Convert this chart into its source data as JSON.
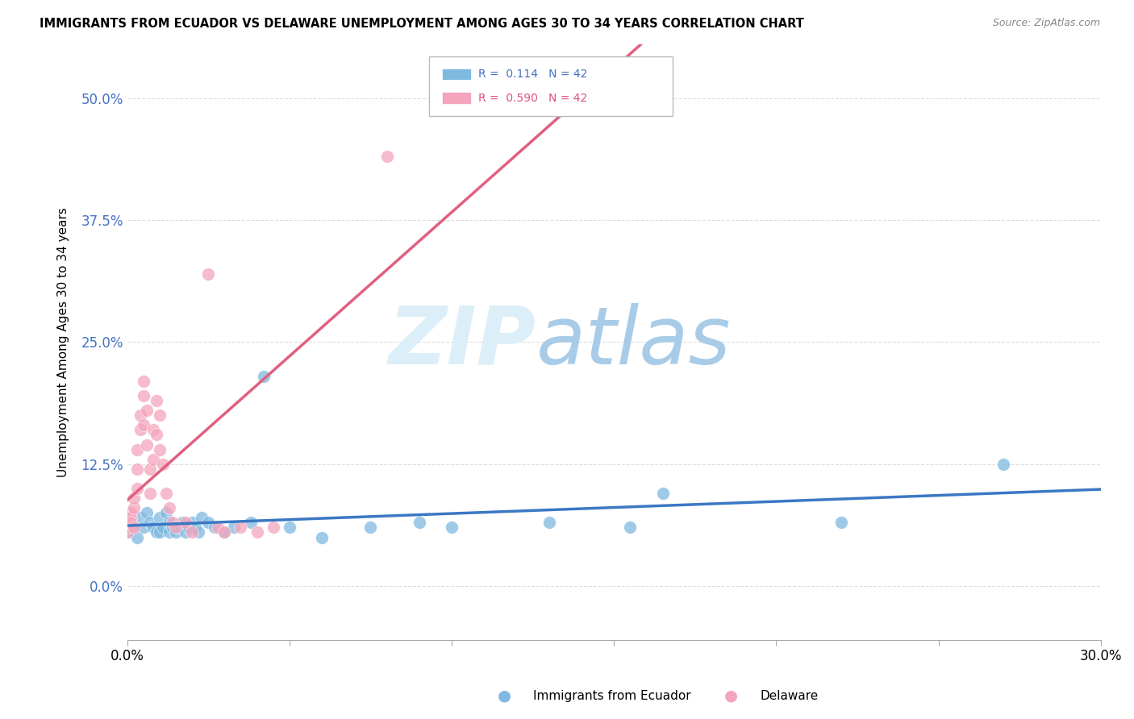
{
  "title": "IMMIGRANTS FROM ECUADOR VS DELAWARE UNEMPLOYMENT AMONG AGES 30 TO 34 YEARS CORRELATION CHART",
  "source": "Source: ZipAtlas.com",
  "ylabel": "Unemployment Among Ages 30 to 34 years",
  "xlim": [
    0.0,
    0.3
  ],
  "ylim": [
    -0.055,
    0.555
  ],
  "yticks": [
    0.0,
    0.125,
    0.25,
    0.375,
    0.5
  ],
  "ytick_labels": [
    "0.0%",
    "12.5%",
    "25.0%",
    "37.5%",
    "50.0%"
  ],
  "xticks": [
    0.0,
    0.05,
    0.1,
    0.15,
    0.2,
    0.25,
    0.3
  ],
  "xtick_labels": [
    "0.0%",
    "",
    "",
    "",
    "",
    "",
    "30.0%"
  ],
  "legend_r_blue": "R =  0.114",
  "legend_n_blue": "N = 42",
  "legend_r_pink": "R =  0.590",
  "legend_n_pink": "N = 42",
  "blue_color": "#7fb9e0",
  "pink_color": "#f4a4bc",
  "blue_line_color": "#3b78c4",
  "pink_line_color": "#e06080",
  "legend_blue_text": "#4472c4",
  "legend_pink_text": "#e05080",
  "ytick_color": "#4472c4",
  "background_color": "#ffffff",
  "grid_color": "#dddddd",
  "blue_scatter_x": [
    0.0,
    0.0,
    0.002,
    0.003,
    0.004,
    0.005,
    0.006,
    0.007,
    0.008,
    0.009,
    0.01,
    0.01,
    0.011,
    0.012,
    0.013,
    0.013,
    0.014,
    0.015,
    0.016,
    0.017,
    0.018,
    0.019,
    0.02,
    0.021,
    0.022,
    0.023,
    0.025,
    0.027,
    0.03,
    0.033,
    0.038,
    0.042,
    0.05,
    0.06,
    0.075,
    0.09,
    0.1,
    0.13,
    0.155,
    0.165,
    0.22,
    0.27
  ],
  "blue_scatter_y": [
    0.065,
    0.055,
    0.06,
    0.05,
    0.07,
    0.06,
    0.075,
    0.065,
    0.06,
    0.055,
    0.07,
    0.055,
    0.06,
    0.075,
    0.055,
    0.065,
    0.06,
    0.055,
    0.06,
    0.065,
    0.055,
    0.06,
    0.065,
    0.06,
    0.055,
    0.07,
    0.065,
    0.06,
    0.055,
    0.06,
    0.065,
    0.215,
    0.06,
    0.05,
    0.06,
    0.065,
    0.06,
    0.065,
    0.06,
    0.095,
    0.065,
    0.125
  ],
  "pink_scatter_x": [
    0.0,
    0.0,
    0.0,
    0.001,
    0.001,
    0.001,
    0.002,
    0.002,
    0.002,
    0.003,
    0.003,
    0.003,
    0.004,
    0.004,
    0.005,
    0.005,
    0.005,
    0.006,
    0.006,
    0.007,
    0.007,
    0.008,
    0.008,
    0.009,
    0.009,
    0.01,
    0.01,
    0.011,
    0.012,
    0.013,
    0.014,
    0.015,
    0.018,
    0.02,
    0.025,
    0.028,
    0.03,
    0.035,
    0.04,
    0.045,
    0.08,
    0.095
  ],
  "pink_scatter_y": [
    0.055,
    0.06,
    0.065,
    0.07,
    0.075,
    0.065,
    0.08,
    0.09,
    0.06,
    0.1,
    0.12,
    0.14,
    0.16,
    0.175,
    0.195,
    0.21,
    0.165,
    0.18,
    0.145,
    0.12,
    0.095,
    0.13,
    0.16,
    0.19,
    0.155,
    0.175,
    0.14,
    0.125,
    0.095,
    0.08,
    0.065,
    0.06,
    0.065,
    0.055,
    0.32,
    0.06,
    0.055,
    0.06,
    0.055,
    0.06,
    0.44,
    0.5
  ]
}
